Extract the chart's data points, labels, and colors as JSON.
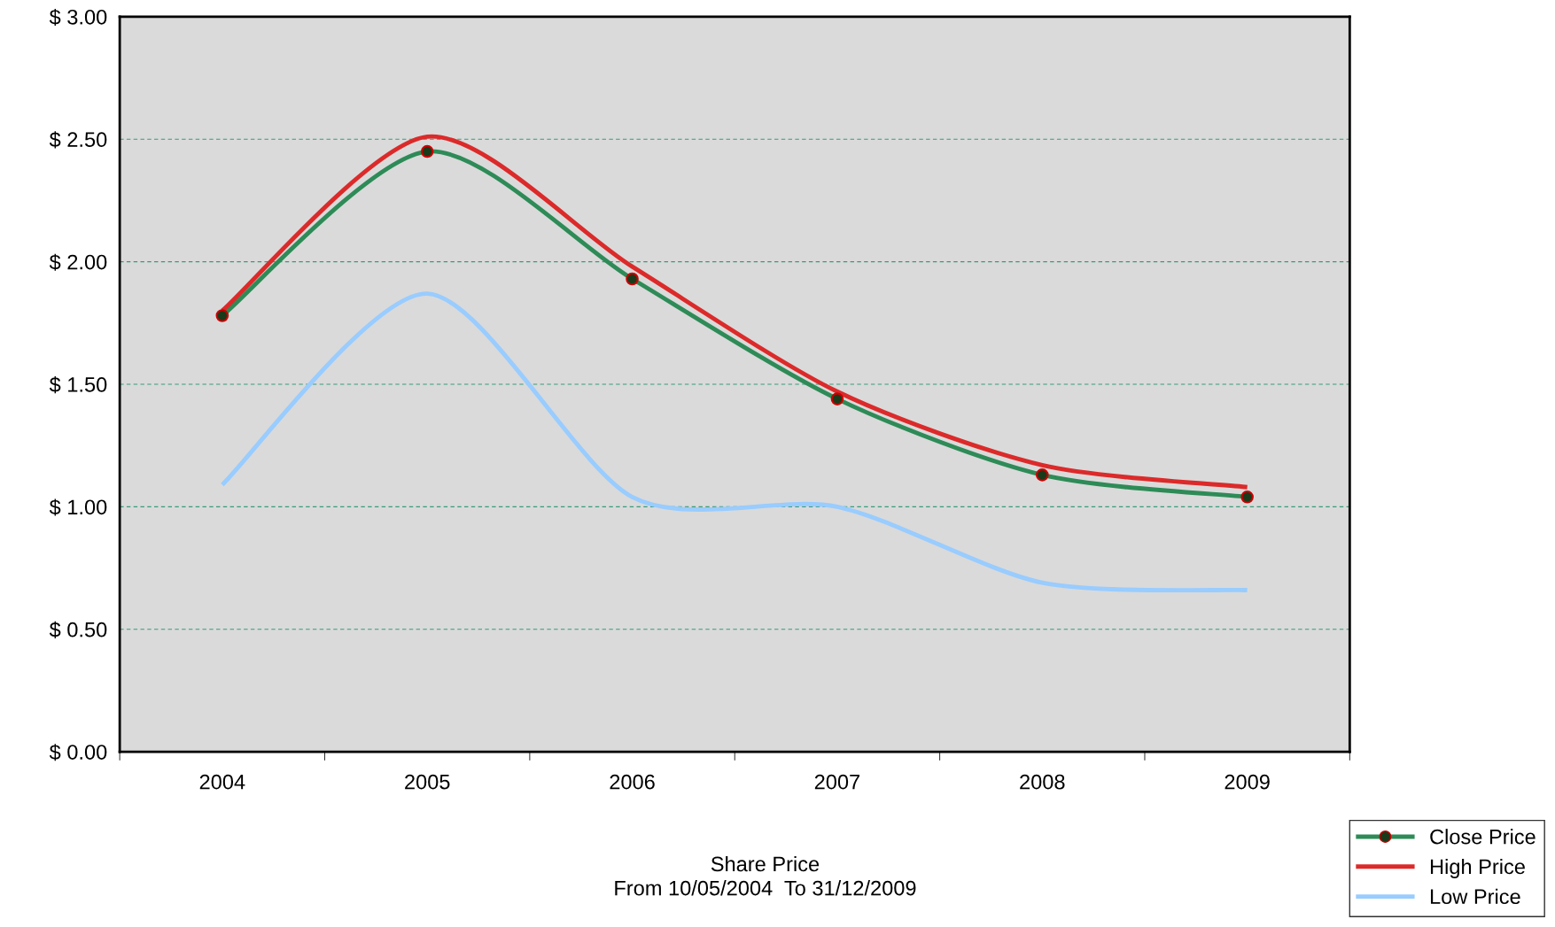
{
  "chart_data": {
    "type": "line",
    "title": "Share Price\nFrom 10/05/2004  To 31/12/2009",
    "categories": [
      "2004",
      "2005",
      "2006",
      "2007",
      "2008",
      "2009"
    ],
    "series": [
      {
        "name": "Close Price",
        "color": "#2e8b57",
        "marker": "circle",
        "values": [
          1.78,
          2.45,
          1.93,
          1.44,
          1.13,
          1.04
        ]
      },
      {
        "name": "High Price",
        "color": "#dc2a2a",
        "marker": "none",
        "values": [
          1.8,
          2.51,
          1.98,
          1.47,
          1.17,
          1.08
        ]
      },
      {
        "name": "Low Price",
        "color": "#99ccff",
        "marker": "none",
        "values": [
          1.09,
          1.87,
          1.04,
          1.0,
          0.69,
          0.66
        ]
      }
    ],
    "ylim": [
      0,
      3
    ],
    "yticks": [
      {
        "value": 0,
        "label": "$ 0.00"
      },
      {
        "value": 0.5,
        "label": "$ 0.50"
      },
      {
        "value": 1,
        "label": "$ 1.00"
      },
      {
        "value": 1.5,
        "label": "$ 1.50"
      },
      {
        "value": 2,
        "label": "$ 2.00"
      },
      {
        "value": 2.5,
        "label": "$ 2.50"
      },
      {
        "value": 3,
        "label": "$ 3.00"
      }
    ],
    "grid": "y",
    "legend": "bottom right",
    "line_style": "solid"
  }
}
